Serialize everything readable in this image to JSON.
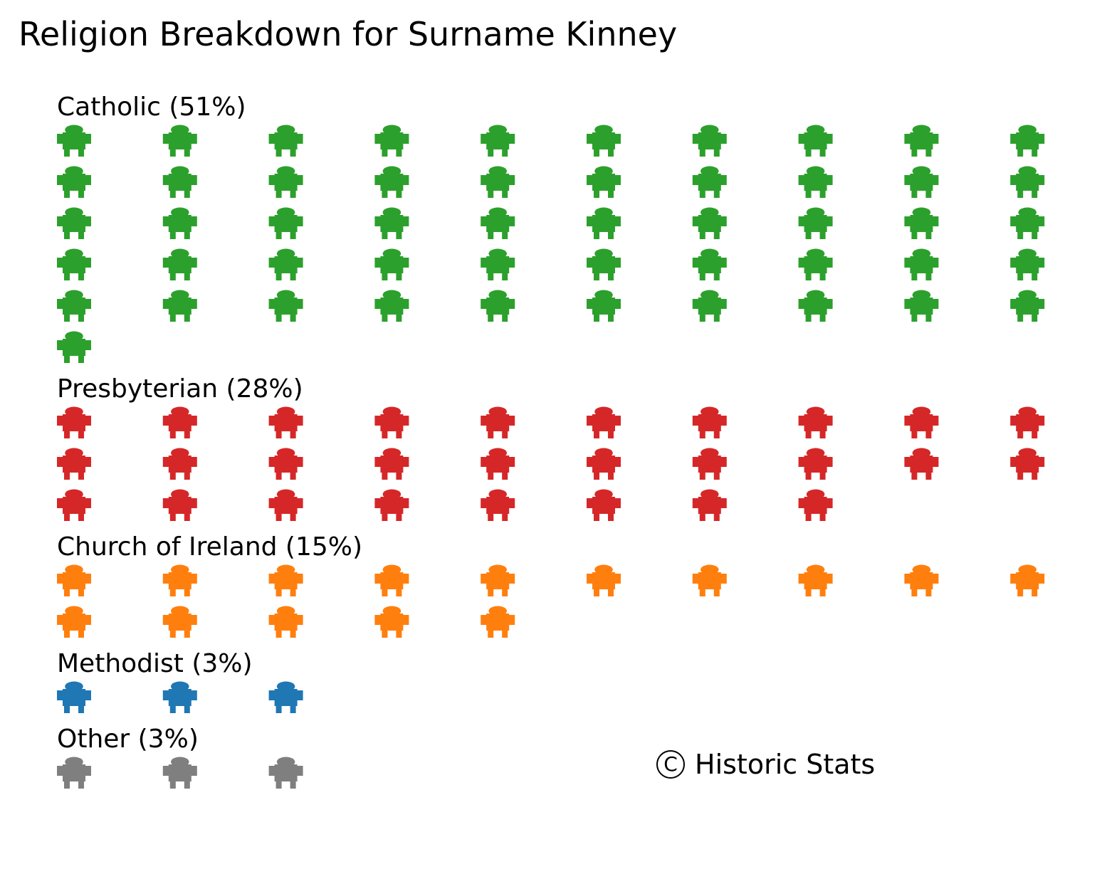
{
  "chart_data": {
    "type": "pictogram",
    "title": "Religion Breakdown for Surname Kinney",
    "icon": "person-icon",
    "icons_per_row": 10,
    "groups": [
      {
        "label": "Catholic (51%)",
        "category": "Catholic",
        "percent": 51,
        "count": 51,
        "color": "#2ca02c"
      },
      {
        "label": "Presbyterian (28%)",
        "category": "Presbyterian",
        "percent": 28,
        "count": 28,
        "color": "#d62728"
      },
      {
        "label": "Church of Ireland (15%)",
        "category": "Church of Ireland",
        "percent": 15,
        "count": 15,
        "color": "#ff7f0e"
      },
      {
        "label": "Methodist (3%)",
        "category": "Methodist",
        "percent": 3,
        "count": 3,
        "color": "#1f77b4"
      },
      {
        "label": "Other (3%)",
        "category": "Other",
        "percent": 3,
        "count": 3,
        "color": "#7f7f7f"
      }
    ]
  },
  "credit": {
    "symbol": "C",
    "text": "Historic Stats"
  }
}
